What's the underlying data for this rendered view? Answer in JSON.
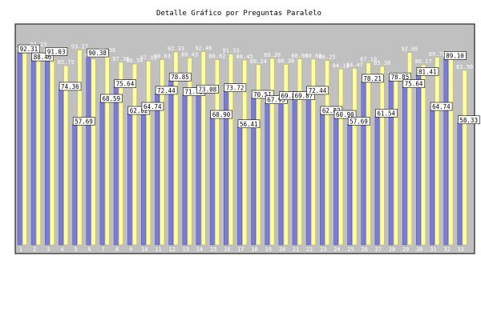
{
  "chart_data": {
    "type": "bar",
    "title": "Detalle Gráfico por Preguntas Paralelo",
    "xlabel": "",
    "ylabel": "",
    "ylim": [
      0,
      100
    ],
    "yticks": [
      10,
      20,
      30,
      40,
      50,
      60,
      70,
      80,
      90
    ],
    "grid": false,
    "legend": "none",
    "colors": {
      "series_a": "#7b7bd8",
      "series_b": "#ffff9c",
      "plot_bg": "#c0c0c0",
      "label_box": "#ffffff"
    },
    "categories": [
      "1",
      "2",
      "3",
      "4",
      "5",
      "6",
      "7",
      "8",
      "9",
      "10",
      "11",
      "12",
      "13",
      "14",
      "15",
      "16",
      "17",
      "18",
      "19",
      "20",
      "21",
      "22",
      "23",
      "24",
      "25",
      "26",
      "27",
      "28",
      "29",
      "30",
      "31",
      "32",
      "33"
    ],
    "series": [
      {
        "values": [
          92.31,
          88.46,
          91.03,
          74.36,
          57.69,
          90.38,
          68.59,
          75.64,
          62.82,
          64.74,
          72.44,
          78.85,
          71.79,
          73.08,
          60.9,
          73.72,
          56.41,
          70.51,
          67.95,
          69.87,
          69.87,
          72.44,
          62.82,
          60.9,
          57.69,
          78.21,
          61.54,
          78.85,
          75.64,
          81.41,
          64.74,
          89.1,
          58.33
        ]
      },
      {
        "values": [
          91.83,
          94.23,
          91.03,
          85.75,
          93.27,
          88.94,
          91.56,
          87.36,
          86.54,
          87.93,
          88.63,
          92.33,
          89.43,
          92.46,
          88.62,
          91.33,
          88.45,
          86.24,
          89.2,
          86.38,
          88.98,
          88.88,
          88.25,
          84.13,
          84.47,
          87.1,
          85.38,
          79.82,
          92.05,
          86.17,
          89.75,
          89.84,
          83.5
        ]
      }
    ]
  }
}
